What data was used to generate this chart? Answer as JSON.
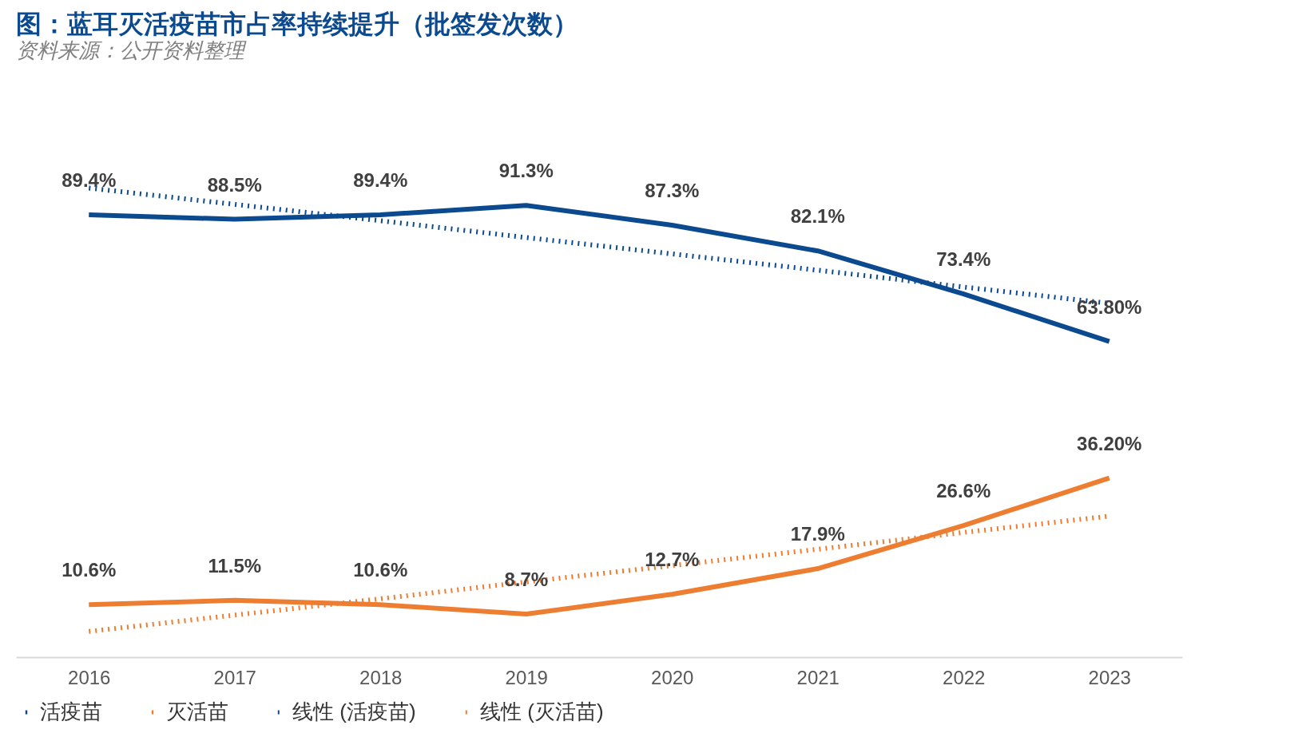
{
  "chart_data": {
    "type": "line",
    "title": "图：蓝耳灭活疫苗市占率持续提升（批签发次数）",
    "categories": [
      "2016",
      "2017",
      "2018",
      "2019",
      "2020",
      "2021",
      "2022",
      "2023"
    ],
    "series": [
      {
        "name": "活疫苗",
        "color": "#0b4a8f",
        "line_style": "solid",
        "values": [
          89.4,
          88.5,
          89.4,
          91.3,
          87.3,
          82.1,
          73.4,
          63.8
        ],
        "value_labels": [
          "89.4%",
          "88.5%",
          "89.4%",
          "91.3%",
          "87.3%",
          "82.1%",
          "73.4%",
          "63.80%"
        ]
      },
      {
        "name": "灭活苗",
        "color": "#ed7d31",
        "line_style": "solid",
        "values": [
          10.6,
          11.5,
          10.6,
          8.7,
          12.7,
          17.9,
          26.6,
          36.2
        ],
        "value_labels": [
          "10.6%",
          "11.5%",
          "10.6%",
          "8.7%",
          "12.7%",
          "17.9%",
          "26.6%",
          "36.20%"
        ]
      },
      {
        "name": "线性 (活疫苗)",
        "type": "line",
        "color": "#0b4a8f",
        "line_style": "dotted",
        "values": [
          94.8,
          91.5,
          88.2,
          84.8,
          81.5,
          78.2,
          74.8,
          71.5
        ]
      },
      {
        "name": "线性 (灭活苗)",
        "type": "line",
        "color": "#ed7d31",
        "line_style": "dotted",
        "values": [
          5.2,
          8.5,
          11.8,
          15.2,
          18.5,
          21.8,
          25.2,
          28.5
        ]
      }
    ],
    "legend": "bottom",
    "grid": false,
    "annotations": [
      "资料来源：公开资料整理"
    ]
  }
}
